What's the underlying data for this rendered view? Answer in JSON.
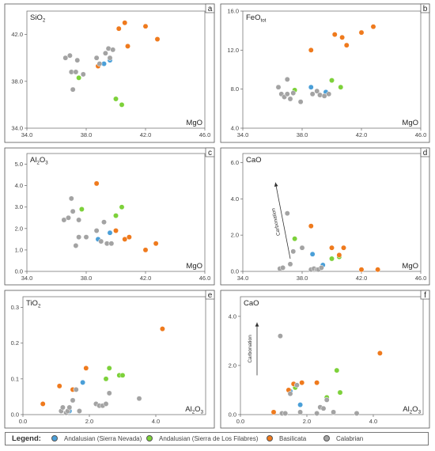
{
  "colors": {
    "sierra_nevada": "#4a9fd8",
    "los_filabres": "#7dd13a",
    "basilicata": "#ef7a1d",
    "calabrian": "#a3a3a3",
    "axis": "#666666",
    "frame": "#555555"
  },
  "legend": {
    "title": "Legend:",
    "items": [
      {
        "key": "sierra_nevada",
        "label": "Andalusian (Sierra Nevada)"
      },
      {
        "key": "los_filabres",
        "label": "Andalusian (Sierra de Los Filabres)"
      },
      {
        "key": "basilicata",
        "label": "Basilicata"
      },
      {
        "key": "calabrian",
        "label": "Calabrian"
      }
    ]
  },
  "chart_data": [
    {
      "panel": "a",
      "type": "scatter",
      "ylabel_main": "SiO",
      "ylabel_sub": "2",
      "xlabel_main": "MgO",
      "xlabel_sub": "",
      "xlim": [
        34,
        46
      ],
      "ylim": [
        34,
        44
      ],
      "xticks": [
        "34.0",
        "38.0",
        "42.0",
        "46.0"
      ],
      "xtick_values": [
        34,
        38,
        42,
        46
      ],
      "yticks": [
        "34.0",
        "38.0",
        "42.0"
      ],
      "ytick_values": [
        34,
        38,
        42
      ],
      "series": [
        {
          "key": "sierra_nevada",
          "points": [
            [
              39.2,
              39.5
            ],
            [
              39.6,
              39.8
            ]
          ]
        },
        {
          "key": "los_filabres",
          "points": [
            [
              37.5,
              38.3
            ],
            [
              40.0,
              36.5
            ],
            [
              40.4,
              36.0
            ]
          ]
        },
        {
          "key": "basilicata",
          "points": [
            [
              38.8,
              39.3
            ],
            [
              40.2,
              42.5
            ],
            [
              40.6,
              43.0
            ],
            [
              40.8,
              41.0
            ],
            [
              42.0,
              42.7
            ],
            [
              42.8,
              41.6
            ]
          ]
        },
        {
          "key": "calabrian",
          "points": [
            [
              36.6,
              40.0
            ],
            [
              36.9,
              40.2
            ],
            [
              37.0,
              38.8
            ],
            [
              37.1,
              37.3
            ],
            [
              37.3,
              38.8
            ],
            [
              37.4,
              39.8
            ],
            [
              37.8,
              38.6
            ],
            [
              38.7,
              40.0
            ],
            [
              38.9,
              39.5
            ],
            [
              39.3,
              40.4
            ],
            [
              39.5,
              40.8
            ],
            [
              39.6,
              40.0
            ],
            [
              39.8,
              40.7
            ]
          ]
        }
      ]
    },
    {
      "panel": "b",
      "type": "scatter",
      "ylabel_main": "FeO",
      "ylabel_sub": "tot",
      "xlabel_main": "MgO",
      "xlabel_sub": "",
      "xlim": [
        34,
        46
      ],
      "ylim": [
        4,
        16
      ],
      "xticks": [
        "34.0",
        "38.0",
        "42.0",
        "46.0"
      ],
      "xtick_values": [
        34,
        38,
        42,
        46
      ],
      "yticks": [
        "4.0",
        "8.0",
        "12.0",
        "16.0"
      ],
      "ytick_values": [
        4,
        8,
        12,
        16
      ],
      "series": [
        {
          "key": "sierra_nevada",
          "points": [
            [
              38.6,
              8.2
            ],
            [
              39.6,
              7.7
            ]
          ]
        },
        {
          "key": "los_filabres",
          "points": [
            [
              37.5,
              7.9
            ],
            [
              40.0,
              8.9
            ],
            [
              40.6,
              8.2
            ]
          ]
        },
        {
          "key": "basilicata",
          "points": [
            [
              38.6,
              12.0
            ],
            [
              40.2,
              13.6
            ],
            [
              40.7,
              13.3
            ],
            [
              41.0,
              12.5
            ],
            [
              42.0,
              13.8
            ],
            [
              42.8,
              14.4
            ]
          ]
        },
        {
          "key": "calabrian",
          "points": [
            [
              36.4,
              8.2
            ],
            [
              36.6,
              7.5
            ],
            [
              36.8,
              7.2
            ],
            [
              37.0,
              7.5
            ],
            [
              37.0,
              9.0
            ],
            [
              37.2,
              7.0
            ],
            [
              37.4,
              7.6
            ],
            [
              37.9,
              6.7
            ],
            [
              38.7,
              7.5
            ],
            [
              39.0,
              7.8
            ],
            [
              39.2,
              7.4
            ],
            [
              39.5,
              7.3
            ],
            [
              39.8,
              7.5
            ]
          ]
        }
      ]
    },
    {
      "panel": "c",
      "type": "scatter",
      "ylabel_main": "Al",
      "ylabel_sub": "2",
      "ylabel_tail": "O",
      "ylabel_sub2": "3",
      "xlabel_main": "MgO",
      "xlabel_sub": "",
      "xlim": [
        34,
        46
      ],
      "ylim": [
        0,
        5.5
      ],
      "xticks": [
        "34.0",
        "38.0",
        "42.0",
        "46.0"
      ],
      "xtick_values": [
        34,
        38,
        42,
        46
      ],
      "yticks": [
        "0.0",
        "1.0",
        "2.0",
        "3.0",
        "4.0",
        "5.0"
      ],
      "ytick_values": [
        0,
        1,
        2,
        3,
        4,
        5
      ],
      "series": [
        {
          "key": "sierra_nevada",
          "points": [
            [
              38.8,
              1.5
            ],
            [
              39.6,
              1.8
            ]
          ]
        },
        {
          "key": "los_filabres",
          "points": [
            [
              37.7,
              2.9
            ],
            [
              40.0,
              2.6
            ],
            [
              40.4,
              3.0
            ]
          ]
        },
        {
          "key": "basilicata",
          "points": [
            [
              38.7,
              4.1
            ],
            [
              40.0,
              1.9
            ],
            [
              40.6,
              1.5
            ],
            [
              40.9,
              1.6
            ],
            [
              42.0,
              1.0
            ],
            [
              42.7,
              1.3
            ]
          ]
        },
        {
          "key": "calabrian",
          "points": [
            [
              36.5,
              2.4
            ],
            [
              36.8,
              2.5
            ],
            [
              37.0,
              3.4
            ],
            [
              37.1,
              2.8
            ],
            [
              37.3,
              1.2
            ],
            [
              37.5,
              1.6
            ],
            [
              37.5,
              2.4
            ],
            [
              38.0,
              1.6
            ],
            [
              38.7,
              1.9
            ],
            [
              39.0,
              1.4
            ],
            [
              39.2,
              2.3
            ],
            [
              39.4,
              1.3
            ],
            [
              39.7,
              1.3
            ]
          ]
        }
      ]
    },
    {
      "panel": "d",
      "type": "scatter",
      "ylabel_main": "CaO",
      "ylabel_sub": "",
      "xlabel_main": "MgO",
      "xlabel_sub": "",
      "xlim": [
        34,
        46
      ],
      "ylim": [
        0,
        6.5
      ],
      "xticks": [
        "34.0",
        "38.0",
        "42.0",
        "46.0"
      ],
      "xtick_values": [
        34,
        38,
        42,
        46
      ],
      "yticks": [
        "0.0",
        "2.0",
        "4.0",
        "6.0"
      ],
      "ytick_values": [
        0,
        2,
        4,
        6
      ],
      "annotation": {
        "text": "Carbonation",
        "from": [
          37.2,
          0.7
        ],
        "to": [
          36.2,
          4.9
        ]
      },
      "series": [
        {
          "key": "sierra_nevada",
          "points": [
            [
              39.4,
              0.35
            ],
            [
              38.7,
              0.95
            ]
          ]
        },
        {
          "key": "los_filabres",
          "points": [
            [
              37.5,
              1.8
            ],
            [
              40.0,
              0.7
            ],
            [
              40.5,
              0.8
            ]
          ]
        },
        {
          "key": "basilicata",
          "points": [
            [
              38.6,
              2.5
            ],
            [
              40.0,
              1.3
            ],
            [
              40.5,
              0.9
            ],
            [
              40.8,
              1.3
            ],
            [
              42.0,
              0.1
            ],
            [
              43.1,
              0.1
            ]
          ]
        },
        {
          "key": "calabrian",
          "points": [
            [
              36.5,
              0.15
            ],
            [
              36.7,
              0.2
            ],
            [
              37.0,
              3.2
            ],
            [
              37.2,
              0.4
            ],
            [
              37.4,
              1.1
            ],
            [
              38.0,
              1.3
            ],
            [
              38.6,
              0.1
            ],
            [
              38.8,
              0.15
            ],
            [
              39.0,
              0.1
            ],
            [
              39.1,
              0.1
            ],
            [
              39.3,
              0.2
            ]
          ]
        }
      ]
    },
    {
      "panel": "e",
      "type": "scatter",
      "ylabel_main": "TiO",
      "ylabel_sub": "2",
      "xlabel_main": "Al",
      "xlabel_sub": "2",
      "xlabel_tail": "O",
      "xlabel_sub2": "3",
      "xlim": [
        0,
        5.5
      ],
      "ylim": [
        0,
        0.33
      ],
      "xticks": [
        "0.0",
        "2.0",
        "4.0"
      ],
      "xtick_values": [
        0,
        2,
        4
      ],
      "yticks": [
        "0.0",
        "0.1",
        "0.2",
        "0.3"
      ],
      "ytick_values": [
        0,
        0.1,
        0.2,
        0.3
      ],
      "series": [
        {
          "key": "sierra_nevada",
          "points": [
            [
              1.4,
              0.01
            ],
            [
              1.8,
              0.09
            ]
          ]
        },
        {
          "key": "los_filabres",
          "points": [
            [
              2.5,
              0.1
            ],
            [
              2.6,
              0.13
            ],
            [
              2.9,
              0.11
            ],
            [
              3.0,
              0.11
            ]
          ]
        },
        {
          "key": "basilicata",
          "points": [
            [
              0.6,
              0.03
            ],
            [
              1.1,
              0.08
            ],
            [
              1.5,
              0.07
            ],
            [
              1.6,
              0.07
            ],
            [
              1.9,
              0.13
            ],
            [
              4.2,
              0.24
            ]
          ]
        },
        {
          "key": "calabrian",
          "points": [
            [
              1.15,
              0.01
            ],
            [
              1.2,
              0.02
            ],
            [
              1.3,
              0.005
            ],
            [
              1.35,
              0.01
            ],
            [
              1.4,
              0.02
            ],
            [
              1.5,
              0.04
            ],
            [
              1.6,
              0.07
            ],
            [
              1.7,
              0.01
            ],
            [
              2.2,
              0.03
            ],
            [
              2.3,
              0.025
            ],
            [
              2.4,
              0.025
            ],
            [
              2.5,
              0.03
            ],
            [
              2.6,
              0.06
            ],
            [
              3.5,
              0.045
            ]
          ]
        }
      ]
    },
    {
      "panel": "f",
      "type": "scatter",
      "ylabel_main": "CaO",
      "ylabel_sub": "",
      "xlabel_main": "Al",
      "xlabel_sub": "2",
      "xlabel_tail": "O",
      "xlabel_sub2": "3",
      "xlim": [
        0,
        5.5
      ],
      "ylim": [
        0,
        4.8
      ],
      "xticks": [
        "0.0",
        "2.0",
        "4.0"
      ],
      "xtick_values": [
        0,
        2,
        4
      ],
      "yticks": [
        "0.0",
        "2.0",
        "4.0"
      ],
      "ytick_values": [
        0,
        2,
        4
      ],
      "annotation": {
        "text": "Carbonation",
        "from": [
          0.5,
          1.6
        ],
        "to": [
          0.5,
          3.75
        ]
      },
      "series": [
        {
          "key": "sierra_nevada",
          "points": [
            [
              1.5,
              0.95
            ],
            [
              1.8,
              0.4
            ]
          ]
        },
        {
          "key": "los_filabres",
          "points": [
            [
              1.65,
              1.1
            ],
            [
              2.6,
              0.7
            ],
            [
              2.9,
              1.8
            ],
            [
              3.0,
              0.9
            ]
          ]
        },
        {
          "key": "basilicata",
          "points": [
            [
              1.0,
              0.1
            ],
            [
              1.45,
              1.0
            ],
            [
              1.6,
              1.25
            ],
            [
              1.85,
              1.3
            ],
            [
              2.3,
              1.3
            ],
            [
              4.2,
              2.5
            ]
          ]
        },
        {
          "key": "calabrian",
          "points": [
            [
              1.2,
              3.2
            ],
            [
              1.25,
              0.05
            ],
            [
              1.35,
              0.05
            ],
            [
              1.5,
              0.85
            ],
            [
              1.7,
              1.2
            ],
            [
              1.8,
              0.1
            ],
            [
              2.3,
              0.05
            ],
            [
              2.4,
              0.3
            ],
            [
              2.5,
              0.25
            ],
            [
              2.6,
              0.6
            ],
            [
              2.8,
              0.1
            ],
            [
              3.5,
              0.05
            ]
          ]
        }
      ]
    }
  ]
}
